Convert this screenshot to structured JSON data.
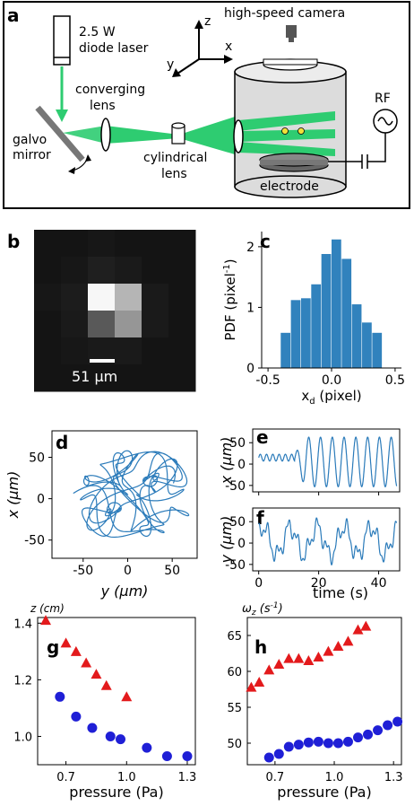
{
  "panels": {
    "a": "a",
    "b": "b",
    "c": "c",
    "d": "d",
    "e": "e",
    "f": "f",
    "g": "g",
    "h": "h"
  },
  "schematic": {
    "laser": "2.5 W",
    "laser2": "diode laser",
    "camera": "high-speed camera",
    "axes": {
      "z": "z",
      "x": "x",
      "y": "y"
    },
    "conv1": "converging",
    "conv2": "lens",
    "galvo1": "galvo",
    "galvo2": "mirror",
    "cyl1": "cylindrical",
    "cyl2": "lens",
    "rf": "RF",
    "electrode": "electrode",
    "colors": {
      "beam": "#2ecc71",
      "chamber": "#dcdcdc"
    }
  },
  "image_b": {
    "scalebar": "51 μm",
    "pixels": [
      [
        0.08,
        0.08,
        0.09,
        0.08,
        0.08,
        0.08
      ],
      [
        0.08,
        0.09,
        0.12,
        0.1,
        0.08,
        0.08
      ],
      [
        0.09,
        0.11,
        0.97,
        0.71,
        0.1,
        0.08
      ],
      [
        0.08,
        0.1,
        0.35,
        0.59,
        0.1,
        0.08
      ],
      [
        0.08,
        0.09,
        0.1,
        0.1,
        0.08,
        0.08
      ],
      [
        0.08,
        0.08,
        0.08,
        0.08,
        0.08,
        0.08
      ]
    ]
  },
  "chart_data": [
    {
      "id": "c",
      "type": "bar",
      "xlabel": "x",
      "xlabel_sub": "d",
      "xlabel_unit": " (pixel)",
      "ylabel": "PDF (pixel",
      "ylabel_sup": "-1",
      "ylabel_end": ")",
      "xlim": [
        -0.55,
        0.55
      ],
      "ylim": [
        0,
        2.25
      ],
      "xticks": [
        "-0.5",
        "0.0",
        "0.5"
      ],
      "yticks": [
        "0",
        "1",
        "2"
      ],
      "bin_edges": [
        -0.4,
        -0.32,
        -0.24,
        -0.16,
        -0.08,
        0.0,
        0.08,
        0.16,
        0.24,
        0.32,
        0.4
      ],
      "values": [
        0.58,
        1.12,
        1.15,
        1.38,
        1.88,
        2.12,
        1.8,
        1.05,
        0.75,
        0.58
      ],
      "color": "#3182bd"
    },
    {
      "id": "d",
      "type": "line",
      "xlabel": "y (μm)",
      "ylabel": "x (μm)",
      "xlim": [
        -85,
        78
      ],
      "ylim": [
        -72,
        82
      ],
      "xticks": [
        "-50",
        "0",
        "50"
      ],
      "yticks": [
        "50",
        "0",
        "-50"
      ],
      "color": "#2b7bba"
    },
    {
      "id": "e",
      "type": "line",
      "ylabel": "x (μm)",
      "xlim": [
        -2,
        47
      ],
      "ylim": [
        -65,
        82
      ],
      "yticks": [
        "50",
        "0",
        "-50"
      ],
      "color": "#2b7bba"
    },
    {
      "id": "f",
      "type": "line",
      "ylabel": "y (μm)",
      "xlabel": "time (s)",
      "xlim": [
        -2,
        47
      ],
      "ylim": [
        -65,
        82
      ],
      "xticks": [
        "0",
        "20",
        "40"
      ],
      "yticks": [
        "50",
        "0",
        "-50"
      ],
      "color": "#2b7bba"
    },
    {
      "id": "g",
      "type": "scatter",
      "title": "z (cm)",
      "xlabel": "pressure (Pa)",
      "xlim": [
        0.56,
        1.34
      ],
      "ylim": [
        0.9,
        1.42
      ],
      "xticks": [
        "0.7",
        "1.0",
        "1.3"
      ],
      "yticks": [
        "1.4",
        "1.2",
        "1.0"
      ],
      "series": [
        {
          "marker": "triangle",
          "color": "#e31a1c",
          "x": [
            0.6,
            0.7,
            0.75,
            0.8,
            0.85,
            0.9,
            1.0
          ],
          "y": [
            1.41,
            1.33,
            1.3,
            1.26,
            1.22,
            1.18,
            1.14
          ]
        },
        {
          "marker": "circle",
          "color": "#1f1fd6",
          "x": [
            0.67,
            0.75,
            0.83,
            0.92,
            0.97,
            1.1,
            1.2,
            1.3
          ],
          "y": [
            1.14,
            1.07,
            1.03,
            1.0,
            0.99,
            0.96,
            0.93,
            0.93
          ]
        }
      ]
    },
    {
      "id": "h",
      "type": "scatter",
      "title": "ω",
      "title_sub": "z",
      "title_unit": " (s",
      "title_sup": "-1",
      "title_end": ")",
      "xlabel": "pressure (Pa)",
      "xlim": [
        0.56,
        1.34
      ],
      "ylim": [
        47,
        67.5
      ],
      "xticks": [
        "0.7",
        "1.0",
        "1.3"
      ],
      "yticks": [
        "65",
        "60",
        "55",
        "50"
      ],
      "series": [
        {
          "marker": "triangle",
          "color": "#e31a1c",
          "x": [
            0.58,
            0.62,
            0.67,
            0.72,
            0.77,
            0.82,
            0.87,
            0.92,
            0.97,
            1.02,
            1.07,
            1.12,
            1.16
          ],
          "y": [
            57.8,
            58.5,
            60.2,
            61.0,
            61.8,
            61.8,
            61.5,
            62.0,
            62.8,
            63.5,
            64.2,
            65.8,
            66.3
          ]
        },
        {
          "marker": "circle",
          "color": "#1f1fd6",
          "x": [
            0.67,
            0.72,
            0.77,
            0.82,
            0.87,
            0.92,
            0.97,
            1.02,
            1.07,
            1.12,
            1.17,
            1.22,
            1.27,
            1.32
          ],
          "y": [
            48.0,
            48.5,
            49.5,
            49.8,
            50.1,
            50.2,
            50.0,
            50.0,
            50.2,
            50.8,
            51.2,
            51.8,
            52.5,
            53.0
          ]
        }
      ]
    }
  ]
}
